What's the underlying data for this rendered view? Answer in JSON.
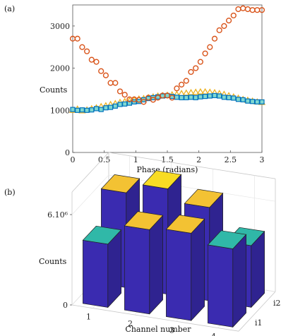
{
  "chart_data": [
    {
      "type": "scatter",
      "panel_label": "(a)",
      "xlabel": "Phase (radians)",
      "ylabel": "Counts",
      "xlim": [
        0,
        3
      ],
      "ylim": [
        0,
        3500
      ],
      "x_ticks": [
        "0",
        "0.5",
        "1",
        "1.5",
        "2",
        "2.5",
        "3"
      ],
      "y_ticks": [
        "0",
        "1000",
        "2000",
        "3000"
      ],
      "grid": false,
      "x": [
        0,
        0.075,
        0.15,
        0.225,
        0.3,
        0.375,
        0.45,
        0.525,
        0.6,
        0.675,
        0.75,
        0.825,
        0.9,
        0.975,
        1.05,
        1.125,
        1.2,
        1.275,
        1.35,
        1.425,
        1.5,
        1.575,
        1.65,
        1.725,
        1.8,
        1.875,
        1.95,
        2.025,
        2.1,
        2.175,
        2.25,
        2.325,
        2.4,
        2.475,
        2.55,
        2.625,
        2.7,
        2.775,
        2.85,
        2.925,
        3
      ],
      "series": [
        {
          "marker": "circle",
          "color": "#d95319",
          "values": [
            2700,
            2700,
            2500,
            2400,
            2200,
            2150,
            1930,
            1830,
            1650,
            1650,
            1450,
            1370,
            1260,
            1260,
            1250,
            1200,
            1300,
            1250,
            1300,
            1350,
            1350,
            1300,
            1520,
            1610,
            1700,
            1910,
            2000,
            2150,
            2350,
            2500,
            2700,
            2900,
            3000,
            3130,
            3250,
            3400,
            3420,
            3400,
            3380,
            3380,
            3380
          ]
        },
        {
          "marker": "square",
          "color": "#0072bd",
          "values": [
            1020,
            1000,
            1010,
            1000,
            1010,
            1040,
            1020,
            1060,
            1070,
            1100,
            1140,
            1150,
            1170,
            1200,
            1210,
            1250,
            1280,
            1300,
            1320,
            1340,
            1350,
            1330,
            1310,
            1300,
            1300,
            1310,
            1300,
            1320,
            1330,
            1340,
            1350,
            1340,
            1310,
            1300,
            1290,
            1260,
            1250,
            1220,
            1210,
            1200,
            1200
          ]
        },
        {
          "marker": "triangle",
          "color": "#edb120",
          "values": [
            1000,
            1030,
            990,
            1010,
            1040,
            1060,
            1090,
            1110,
            1140,
            1160,
            1190,
            1210,
            1230,
            1250,
            1270,
            1280,
            1300,
            1320,
            1340,
            1350,
            1360,
            1370,
            1380,
            1400,
            1410,
            1420,
            1430,
            1440,
            1440,
            1430,
            1420,
            1400,
            1380,
            1350,
            1320,
            1290,
            1260,
            1240,
            1220,
            1200,
            1190
          ]
        }
      ]
    },
    {
      "type": "bar3d",
      "panel_label": "(b)",
      "xlabel": "Channel number",
      "ylabel": "Counts",
      "categories": [
        "1",
        "2",
        "3",
        "4"
      ],
      "rows": [
        "i1",
        "i2"
      ],
      "z_ticks": [
        "0",
        "6.10⁶"
      ],
      "zlim": [
        0,
        7.5
      ],
      "values": {
        "i1": [
          4.2,
          5.6,
          5.8,
          5.2
        ],
        "i2": [
          6.3,
          7.0,
          6.2,
          4.1
        ]
      },
      "colormap": "parula"
    }
  ]
}
